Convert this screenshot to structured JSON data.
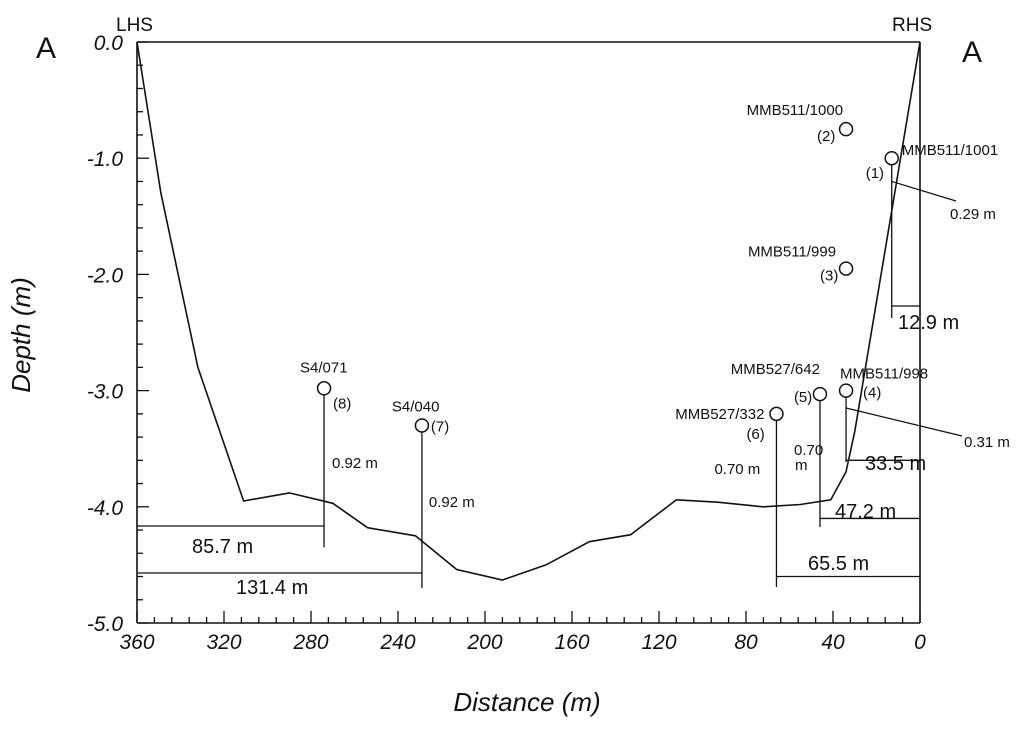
{
  "section_left": "A",
  "section_right": "A",
  "side_left": "LHS",
  "side_right": "RHS",
  "xlabel": "Distance (m)",
  "ylabel": "Depth (m)",
  "x_ticks": [
    360,
    320,
    280,
    240,
    200,
    160,
    120,
    80,
    40,
    0
  ],
  "x_tick_labels": [
    "360",
    "320",
    "280",
    "240",
    "200",
    "160",
    "120",
    "80",
    "40",
    "0"
  ],
  "y_ticks": [
    0,
    -1,
    -2,
    -3,
    -4,
    -5
  ],
  "y_tick_labels": [
    "0.0",
    "-1.0",
    "-2.0",
    "-3.0",
    "-4.0",
    "-5.0"
  ],
  "chart_data": {
    "type": "line",
    "xlim": [
      360,
      0
    ],
    "ylim": [
      -5,
      0
    ],
    "profile": {
      "x": [
        360,
        349,
        332,
        311,
        290,
        270,
        254,
        232,
        213,
        192,
        172,
        152,
        133,
        112,
        93,
        72,
        55,
        41,
        34,
        30,
        0
      ],
      "y": [
        0,
        -1.3,
        -2.8,
        -3.95,
        -3.88,
        -3.97,
        -4.18,
        -4.25,
        -4.54,
        -4.63,
        -4.5,
        -4.3,
        -4.24,
        -3.94,
        -3.96,
        -4.0,
        -3.98,
        -3.94,
        -3.7,
        -3.35,
        0
      ]
    },
    "samples": [
      {
        "id": "MMB511/1001",
        "num": "(1)",
        "x": 13,
        "y": -1.0,
        "stem_depth": -1.2,
        "stem_bottom": -2.3,
        "meas_label": "0.29 m",
        "dist_label": "12.9 m"
      },
      {
        "id": "MMB511/1000",
        "num": "(2)",
        "x": 34,
        "y": -0.75
      },
      {
        "id": "MMB511/999",
        "num": "(3)",
        "x": 34,
        "y": -1.95
      },
      {
        "id": "MMB511/998",
        "num": "(4)",
        "x": 34,
        "y": -3.0,
        "stem_depth": -3.15,
        "stem_bottom": -3.65,
        "meas_label": "0.31 m",
        "dist_label": "33.5 m"
      },
      {
        "id": "MMB527/642",
        "num": "(5)",
        "x": 46,
        "y": -3.03,
        "meas_label": "0.70",
        "meas_label2": "m",
        "stem_bottom": -4.1,
        "dist_label": "47.2 m"
      },
      {
        "id": "MMB527/332",
        "num": "(6)",
        "x": 66,
        "y": -3.2,
        "meas_label": "0.70 m",
        "stem_bottom": -4.6,
        "dist_label": "65.5 m"
      },
      {
        "id": "S4/040",
        "num": "(7)",
        "x": 229,
        "y": -3.3,
        "meas_label": "0.92 m",
        "stem_bottom": -4.7,
        "dist_label": "131.4 m"
      },
      {
        "id": "S4/071",
        "num": "(8)",
        "x": 274,
        "y": -2.98,
        "meas_label": "0.92 m",
        "stem_bottom": -4.35,
        "dist_label": "85.7 m"
      }
    ]
  }
}
